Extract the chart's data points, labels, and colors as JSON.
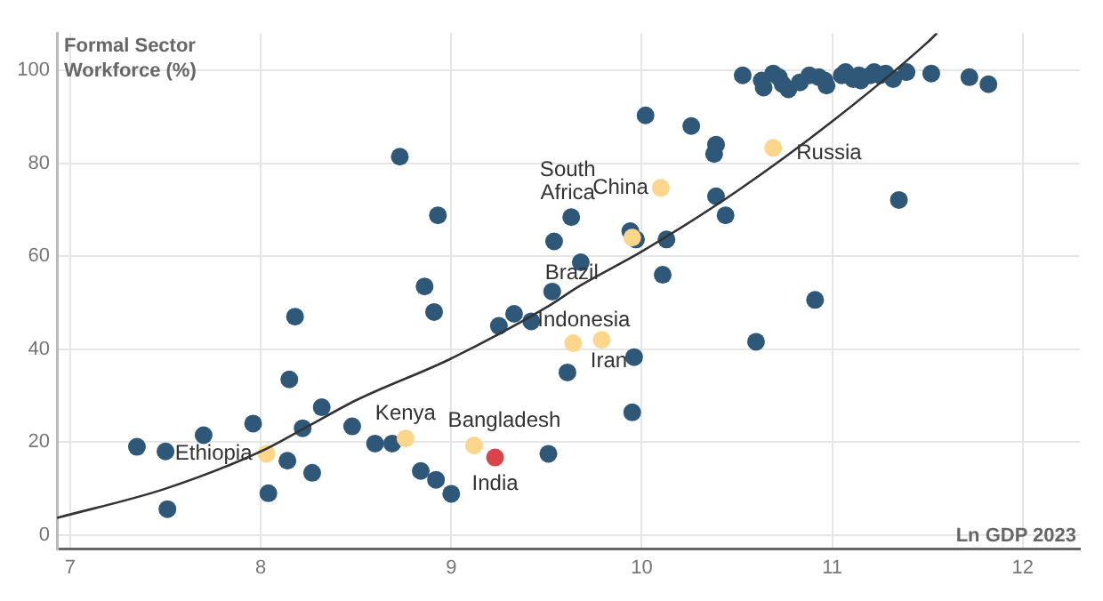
{
  "chart_data": {
    "type": "scatter",
    "xlabel": "Ln GDP 2023",
    "ylabel": "Formal Sector Workforce (%)",
    "xlim": [
      6.93,
      12.3
    ],
    "ylim": [
      -3,
      108
    ],
    "xticks": [
      7,
      8,
      9,
      10,
      11,
      12
    ],
    "yticks": [
      0,
      20,
      40,
      60,
      80,
      100
    ],
    "grid": true,
    "legend": false,
    "marker": "circle",
    "series": [
      {
        "color": "#2f5878",
        "x": [
          7.35,
          7.5,
          7.51,
          7.7,
          7.96,
          8.04,
          8.14,
          8.15,
          8.18,
          8.22,
          8.27,
          8.32,
          8.48,
          8.6,
          8.69,
          8.73,
          8.84,
          8.86,
          8.91,
          8.92,
          8.93,
          9.0,
          9.25,
          9.33,
          9.42,
          9.53,
          9.54,
          9.63,
          9.51,
          9.61,
          9.68,
          9.94,
          9.97,
          9.95,
          9.96,
          10.02,
          10.11,
          10.13,
          10.26,
          10.38,
          10.39,
          10.39,
          10.44,
          10.6,
          10.91,
          11.35,
          10.53,
          10.63,
          10.64,
          10.69,
          10.72,
          10.74,
          10.77,
          10.83,
          10.88,
          10.93,
          10.96,
          10.97,
          11.05,
          11.07,
          11.11,
          11.14,
          11.15,
          11.2,
          11.22,
          11.25,
          11.28,
          11.32,
          11.39,
          11.52,
          11.72,
          11.82
        ],
        "values": [
          19,
          18,
          5.6,
          21.5,
          24,
          9,
          16,
          33.5,
          47,
          23,
          13.4,
          27.5,
          23.4,
          19.7,
          19.7,
          81.4,
          13.8,
          53.5,
          48,
          11.9,
          68.8,
          8.9,
          45,
          47.6,
          46,
          52.4,
          63.2,
          68.4,
          17.5,
          35,
          58.7,
          65.4,
          63.6,
          26.4,
          38.3,
          90.3,
          56,
          63.6,
          88,
          82,
          84,
          72.9,
          68.8,
          41.6,
          50.6,
          72.1,
          98.9,
          97.8,
          96.3,
          99.3,
          98.5,
          97,
          95.9,
          97.4,
          98.9,
          98.5,
          97.8,
          96.7,
          98.9,
          99.6,
          98.1,
          98.9,
          97.8,
          98.9,
          99.6,
          98.9,
          99.3,
          98.1,
          99.6,
          99.3,
          98.5,
          97
        ]
      },
      {
        "color": "#fcd68a",
        "x": [
          8.03,
          8.76,
          9.12,
          9.64,
          9.79,
          9.95,
          10.1,
          10.69
        ],
        "values": [
          17.5,
          20.8,
          19.3,
          41.3,
          42,
          64,
          74.7,
          83.3
        ]
      },
      {
        "color": "#d9434a",
        "x": [
          9.23
        ],
        "values": [
          16.7
        ]
      },
      {
        "type": "line",
        "color": "#333333",
        "marker": "none",
        "x": [
          6.93,
          7.5,
          8,
          8.23,
          8.5,
          9,
          9.5,
          9.67,
          10,
          10.5,
          11,
          11.5,
          11.55
        ],
        "values": [
          3.7,
          10,
          18,
          23,
          29,
          38,
          49,
          53.5,
          61,
          74,
          89,
          106,
          108
        ]
      }
    ],
    "annotations": [
      {
        "text": "Ethiopia",
        "x": 8.03,
        "y": 17.5
      },
      {
        "text": "Kenya",
        "x": 8.76,
        "y": 20.8
      },
      {
        "text": "Bangladesh",
        "x": 9.12,
        "y": 19.3
      },
      {
        "text": "India",
        "x": 9.23,
        "y": 16.7
      },
      {
        "text": "Indonesia",
        "x": 9.64,
        "y": 41.3
      },
      {
        "text": "Iran",
        "x": 9.79,
        "y": 42
      },
      {
        "text": "Brazil",
        "x": 9.95,
        "y": 64
      },
      {
        "text": "China",
        "x": 10.1,
        "y": 74.7
      },
      {
        "text": "South Africa",
        "x": 9.63,
        "y": 68.4
      },
      {
        "text": "Russia",
        "x": 10.69,
        "y": 83.3
      }
    ]
  }
}
